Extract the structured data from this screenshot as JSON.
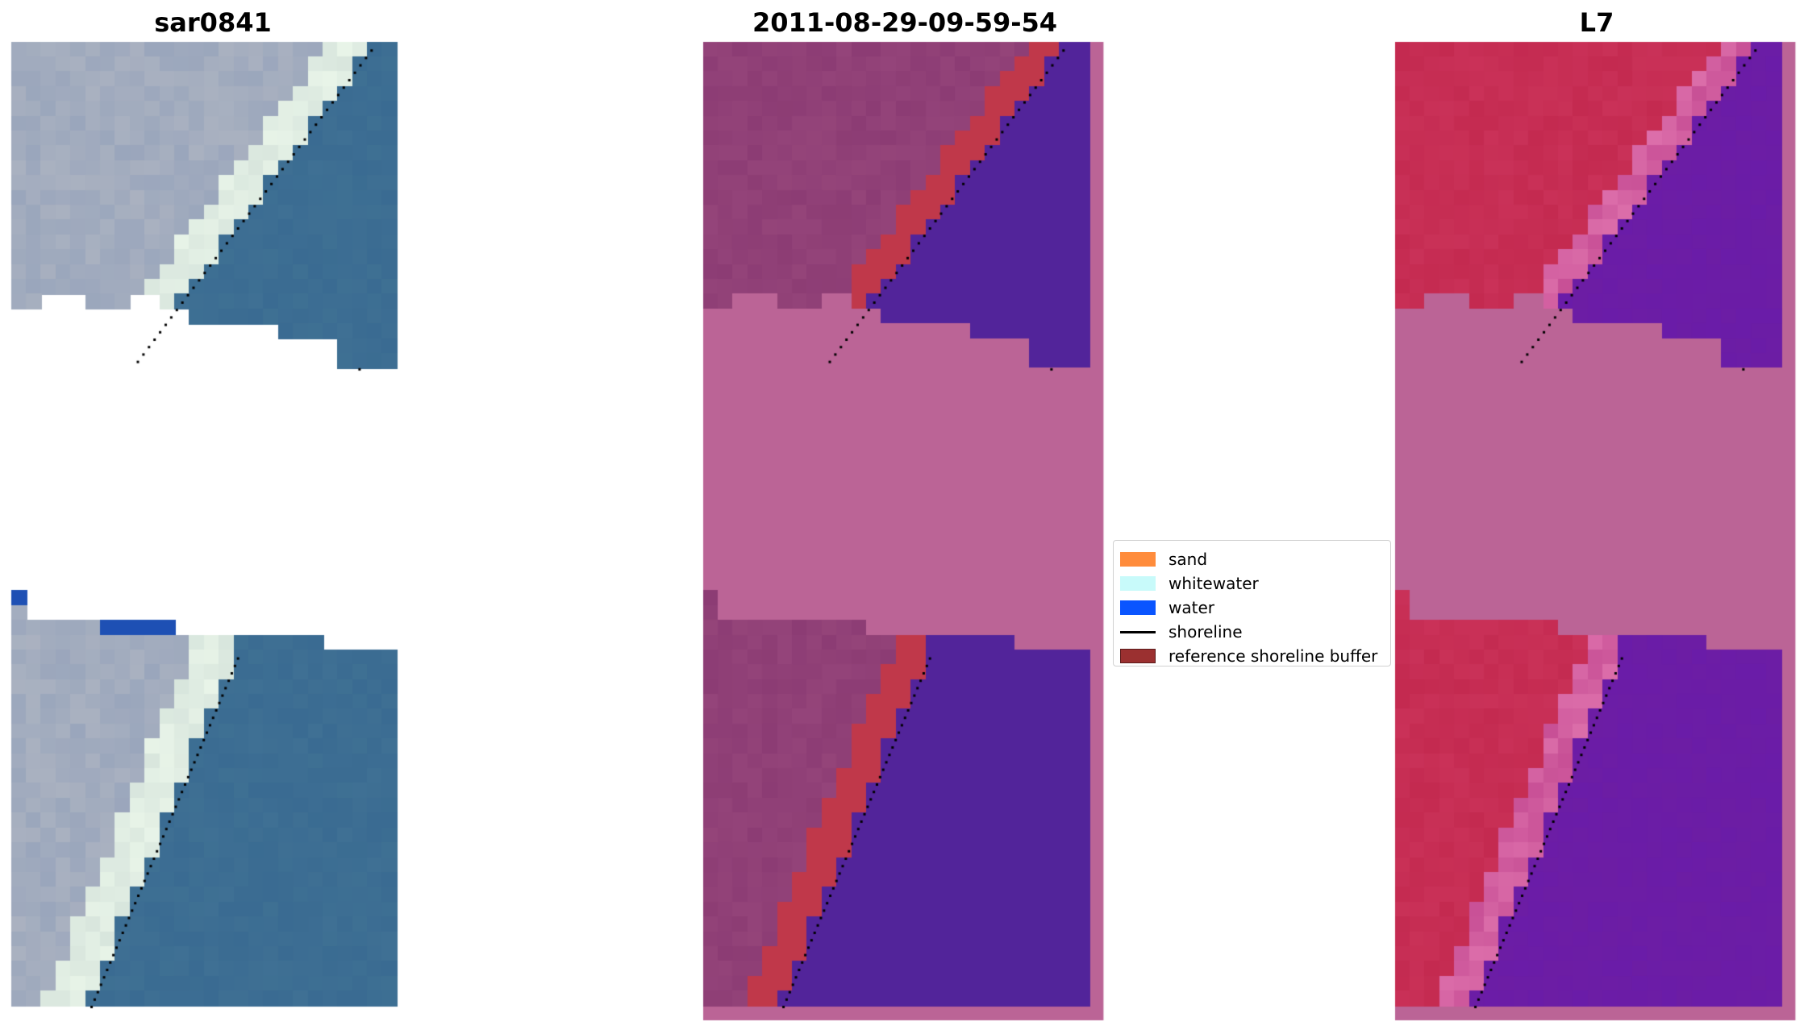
{
  "panels": [
    {
      "title": "sar0841"
    },
    {
      "title": "2011-08-29-09-59-54"
    },
    {
      "title": "L7"
    }
  ],
  "legend": {
    "items": [
      {
        "label": "sand",
        "color": "#ff8c3c"
      },
      {
        "label": "whitewater",
        "color": "#c8fafa"
      },
      {
        "label": "water",
        "color": "#0a55ff"
      },
      {
        "label": "shoreline",
        "color": "#000000"
      },
      {
        "label": "reference shoreline buffer",
        "color": "#9b3030"
      }
    ]
  },
  "colors": {
    "rgb_land": "#9aa6bc",
    "rgb_sea": "#3a6b92",
    "rgb_whitewater": "#e8f4e8",
    "class_land": "#8c3c74",
    "class_buffer": "#c0384a",
    "class_water": "#52249a",
    "class_nodata": "#bb6496",
    "nir_land": "#c42a50",
    "nir_sea": "#6a1ca8",
    "nir_nodata": "#bb6496"
  }
}
